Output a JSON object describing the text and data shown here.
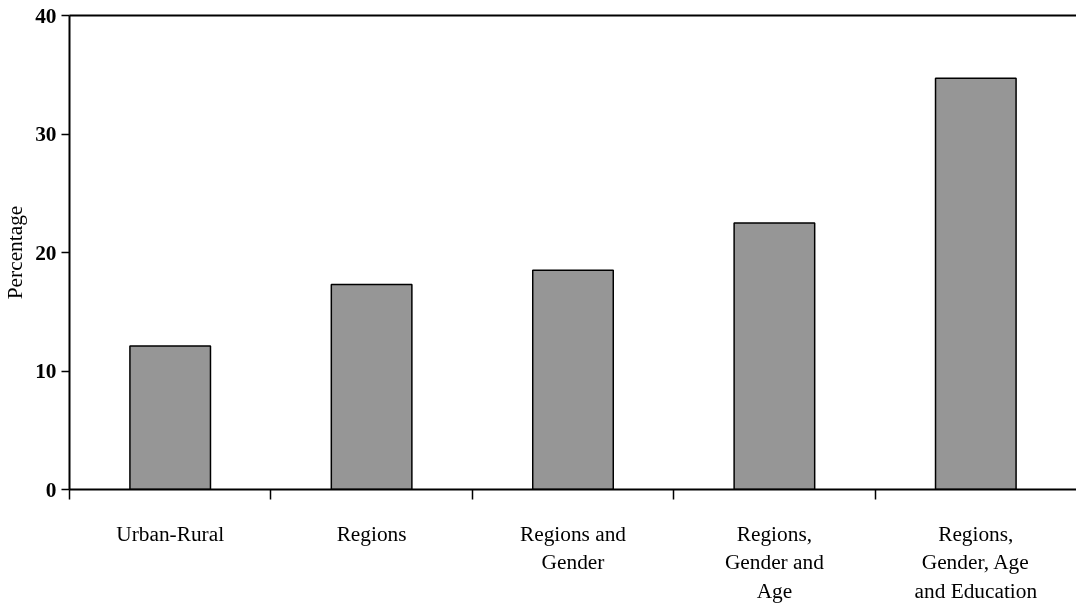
{
  "chart_data": {
    "type": "bar",
    "ylabel": "Percentage",
    "categories": [
      "Urban-Rural",
      "Regions",
      "Regions and Gender",
      "Regions, Gender and Age",
      "Regions, Gender, Age and Education"
    ],
    "values": [
      12.1,
      17.3,
      18.5,
      22.5,
      34.7
    ],
    "color": "#969696",
    "ylim": [
      0,
      40
    ],
    "yticks": [
      0,
      10,
      20,
      30,
      40
    ],
    "grid": false
  }
}
